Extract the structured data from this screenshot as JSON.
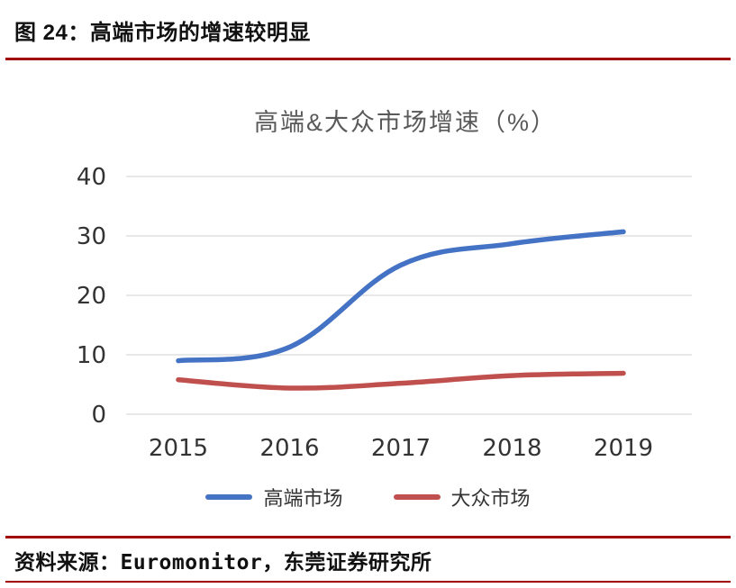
{
  "page": {
    "caption": "图 24：高端市场的增速较明显",
    "source": "资料来源：Euromonitor，东莞证券研究所"
  },
  "colors": {
    "accent_rule": "#A00000",
    "grid": "#D9D9D9",
    "axis_text": "#333333",
    "title_text": "#595959",
    "high_end_line": "#4472C4",
    "mass_line": "#C0504D"
  },
  "chart_data": {
    "type": "line",
    "title": "高端&大众市场增速（%）",
    "categories": [
      "2015",
      "2016",
      "2017",
      "2018",
      "2019"
    ],
    "series": [
      {
        "name": "高端市场",
        "color": "#4472C4",
        "values": [
          9.0,
          11.3,
          25.1,
          28.7,
          30.7
        ]
      },
      {
        "name": "大众市场",
        "color": "#C0504D",
        "values": [
          5.8,
          4.4,
          5.2,
          6.5,
          6.9
        ]
      }
    ],
    "ylim": [
      0,
      40
    ],
    "ytick_step": 10,
    "grid": true,
    "legend_position": "bottom"
  }
}
